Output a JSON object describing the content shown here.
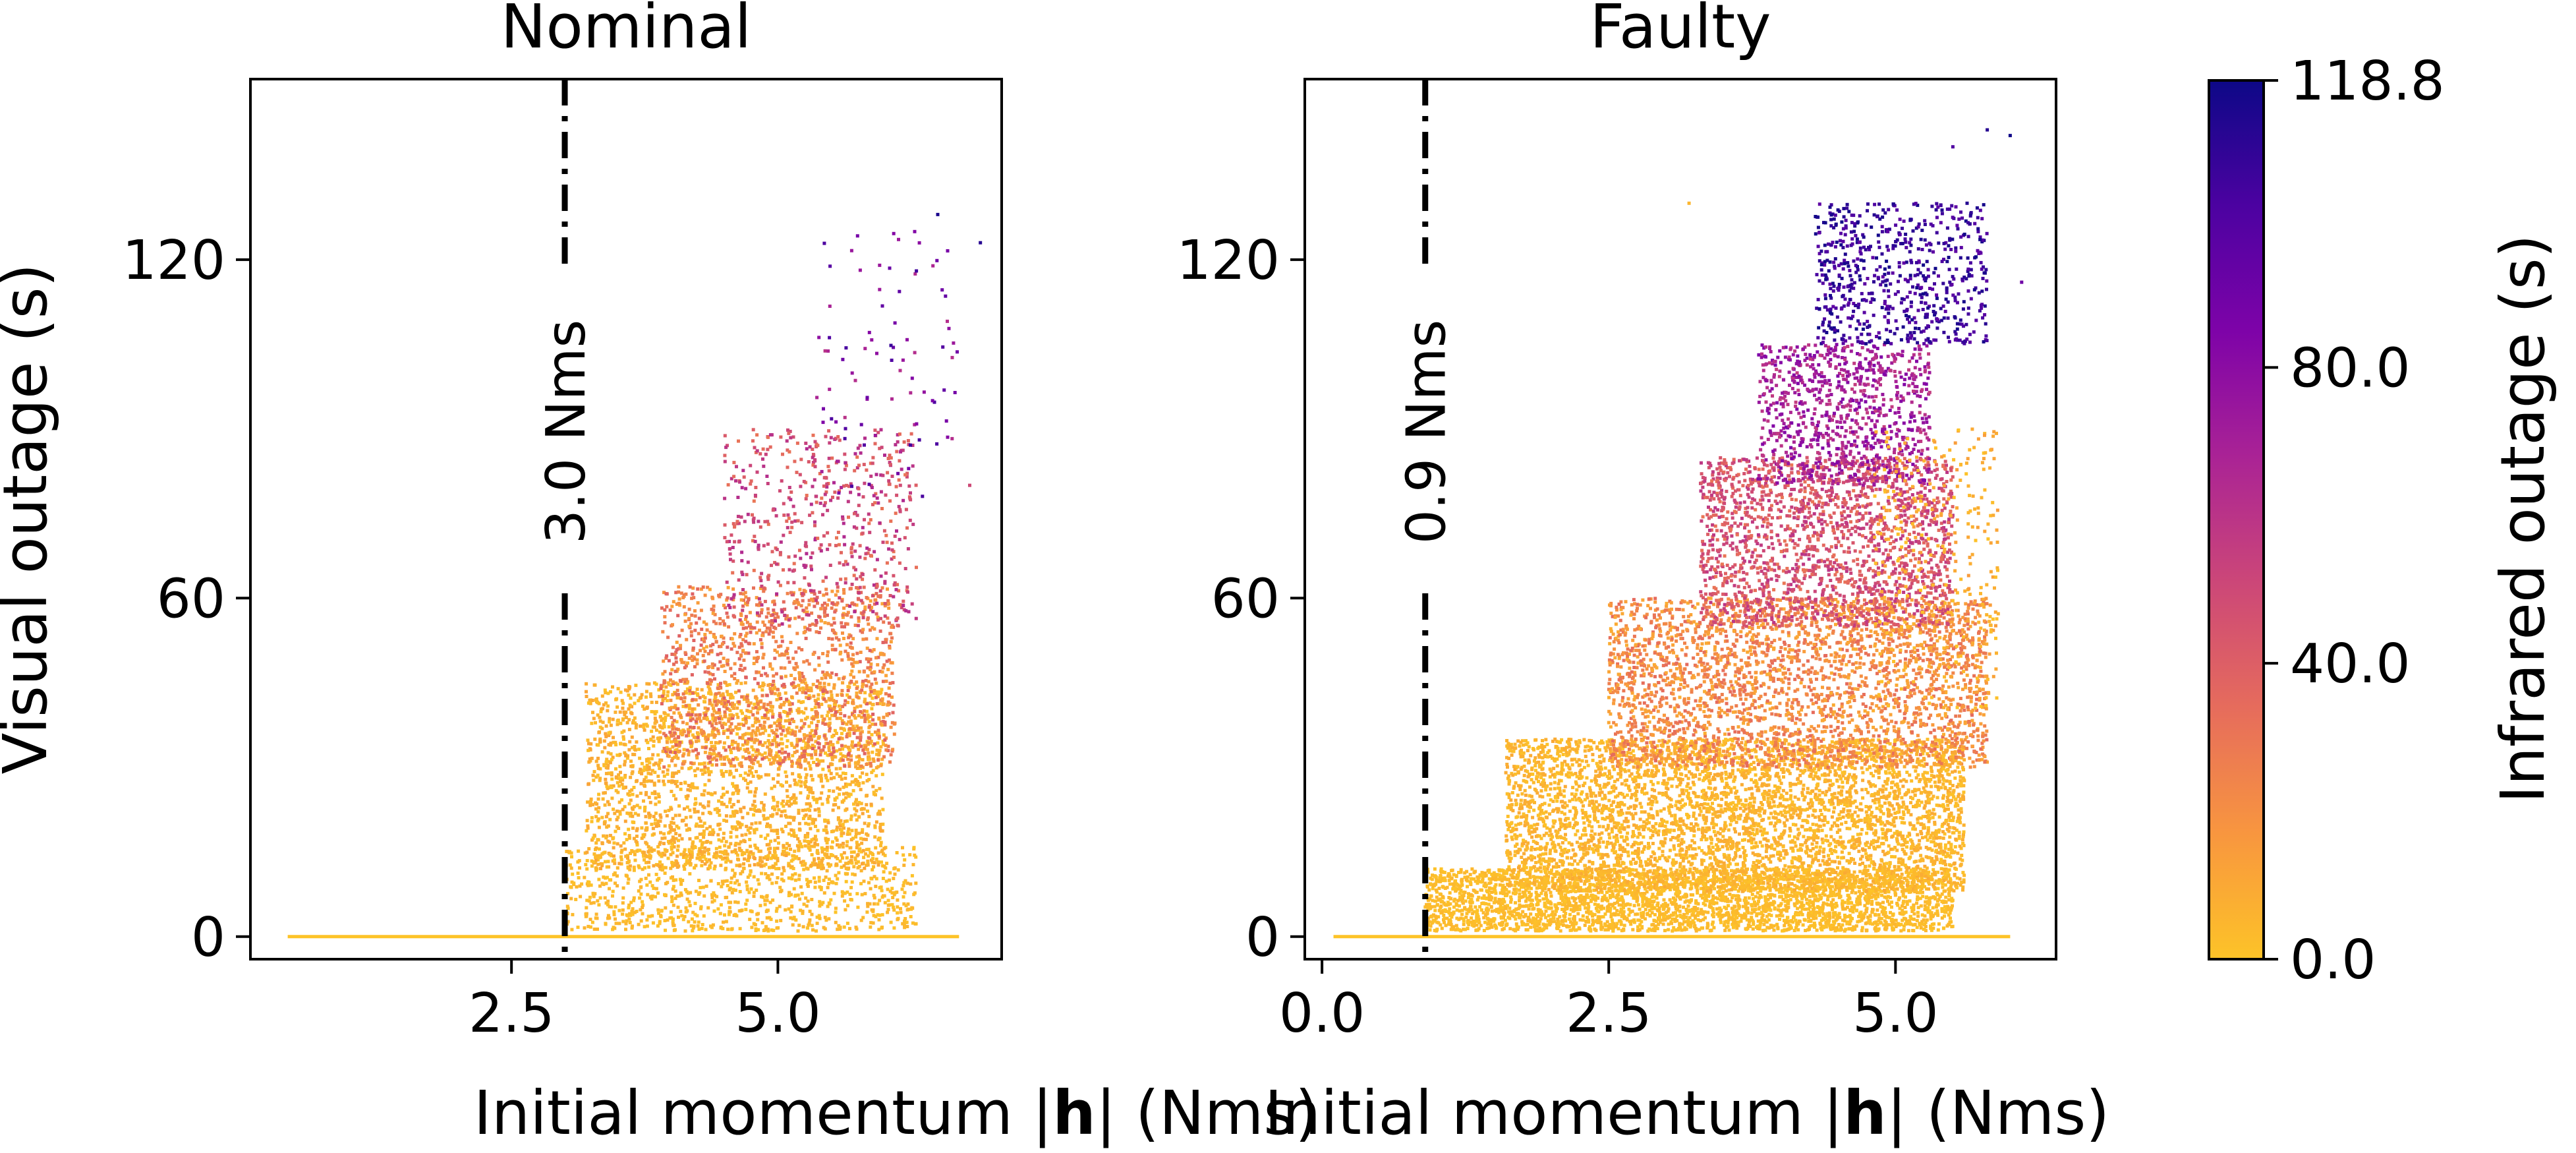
{
  "chart_data": [
    {
      "type": "scatter",
      "title": "Nominal",
      "xlabel_prefix": "Initial momentum |",
      "xlabel_bold": "h",
      "xlabel_suffix": "| (Nms)",
      "ylabel": "Visual outage (s)",
      "xlim": [
        0.05,
        7.1
      ],
      "ylim": [
        -4,
        152
      ],
      "xticks": [
        2.5,
        5.0
      ],
      "xtick_labels": [
        "2.5",
        "5.0"
      ],
      "yticks": [
        0,
        60,
        120
      ],
      "ytick_labels": [
        "0",
        "60",
        "120"
      ],
      "vline": {
        "x": 3.0,
        "label": "3.0 Nms",
        "style": "dash-dot"
      },
      "zero_line": {
        "x_start": 0.4,
        "x_end": 6.7,
        "y": 0
      },
      "point_clouds": [
        {
          "x_range": [
            3.0,
            6.3
          ],
          "y_range": [
            1,
            16
          ],
          "c_range": [
            0,
            6
          ],
          "count": 900
        },
        {
          "x_range": [
            3.2,
            6.0
          ],
          "y_range": [
            12,
            45
          ],
          "c_range": [
            0,
            12
          ],
          "count": 2200
        },
        {
          "x_range": [
            3.9,
            6.1
          ],
          "y_range": [
            30,
            62
          ],
          "c_range": [
            10,
            40
          ],
          "count": 1300
        },
        {
          "x_range": [
            4.5,
            6.3
          ],
          "y_range": [
            55,
            90
          ],
          "c_range": [
            30,
            65
          ],
          "count": 550
        },
        {
          "x_range": [
            5.3,
            6.7
          ],
          "y_range": [
            78,
            125
          ],
          "c_range": [
            60,
            110
          ],
          "count": 90
        }
      ],
      "outliers": [
        {
          "x": 6.5,
          "y": 128,
          "c": 115
        },
        {
          "x": 6.9,
          "y": 123,
          "c": 112
        },
        {
          "x": 6.3,
          "y": 118,
          "c": 105
        },
        {
          "x": 6.8,
          "y": 80,
          "c": 50
        }
      ]
    },
    {
      "type": "scatter",
      "title": "Faulty",
      "xlabel_prefix": "Initial momentum |",
      "xlabel_bold": "h",
      "xlabel_suffix": "| (Nms)",
      "ylabel": "",
      "xlim": [
        -0.15,
        6.4
      ],
      "ylim": [
        -4,
        152
      ],
      "xticks": [
        0.0,
        2.5,
        5.0
      ],
      "xtick_labels": [
        "0.0",
        "2.5",
        "5.0"
      ],
      "yticks": [
        0,
        60,
        120
      ],
      "ytick_labels": [
        "0",
        "60",
        "120"
      ],
      "vline": {
        "x": 0.9,
        "label": "0.9 Nms",
        "style": "dash-dot"
      },
      "zero_line": {
        "x_start": 0.1,
        "x_end": 6.0,
        "y": 0
      },
      "point_clouds": [
        {
          "x_range": [
            0.9,
            5.5
          ],
          "y_range": [
            1,
            12
          ],
          "c_range": [
            0,
            5
          ],
          "count": 3200
        },
        {
          "x_range": [
            1.6,
            5.6
          ],
          "y_range": [
            8,
            35
          ],
          "c_range": [
            0,
            10
          ],
          "count": 4500
        },
        {
          "x_range": [
            2.5,
            5.8
          ],
          "y_range": [
            30,
            60
          ],
          "c_range": [
            8,
            35
          ],
          "count": 3000
        },
        {
          "x_range": [
            3.3,
            5.5
          ],
          "y_range": [
            55,
            85
          ],
          "c_range": [
            30,
            60
          ],
          "count": 1900
        },
        {
          "x_range": [
            3.8,
            5.3
          ],
          "y_range": [
            80,
            105
          ],
          "c_range": [
            55,
            85
          ],
          "count": 900
        },
        {
          "x_range": [
            4.3,
            5.8
          ],
          "y_range": [
            105,
            130
          ],
          "c_range": [
            95,
            118
          ],
          "count": 650
        },
        {
          "x_range": [
            4.8,
            5.9
          ],
          "y_range": [
            40,
            90
          ],
          "c_range": [
            0,
            15
          ],
          "count": 350
        }
      ],
      "outliers": [
        {
          "x": 5.8,
          "y": 143,
          "c": 112
        },
        {
          "x": 6.0,
          "y": 142,
          "c": 118
        },
        {
          "x": 5.5,
          "y": 140,
          "c": 100
        },
        {
          "x": 3.2,
          "y": 130,
          "c": 5
        },
        {
          "x": 6.1,
          "y": 116,
          "c": 90
        }
      ]
    }
  ],
  "colorbar": {
    "label": "Infrared outage (s)",
    "min": 0.0,
    "max": 118.8,
    "ticks": [
      0.0,
      40.0,
      80.0,
      118.8
    ],
    "tick_labels": [
      "0.0",
      "40.0",
      "80.0",
      "118.8"
    ],
    "colormap": "plasma (reversed)",
    "stops": [
      "#fdc328",
      "#f8963f",
      "#e66c5c",
      "#cc4778",
      "#aa2395",
      "#7e03a8",
      "#4c02a1",
      "#0d0887"
    ]
  }
}
